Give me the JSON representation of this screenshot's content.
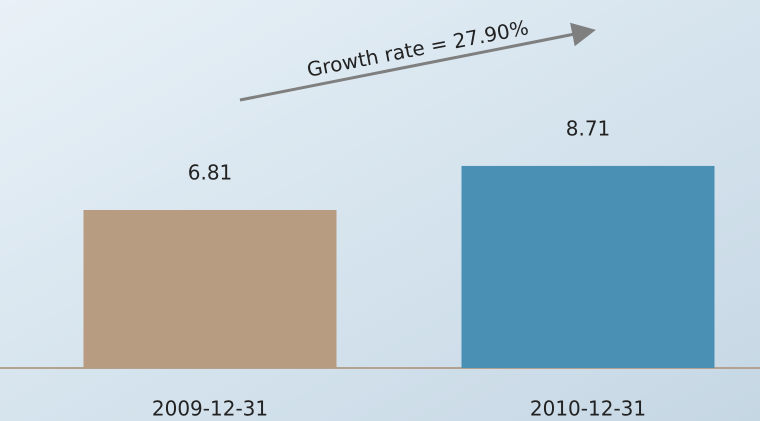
{
  "chart_data": {
    "type": "bar",
    "categories": [
      "2009-12-31",
      "2010-12-31"
    ],
    "values": [
      6.81,
      8.71
    ],
    "colors": [
      "#b89c82",
      "#4a90b4"
    ],
    "annotation": "Growth rate = 27.90%"
  }
}
